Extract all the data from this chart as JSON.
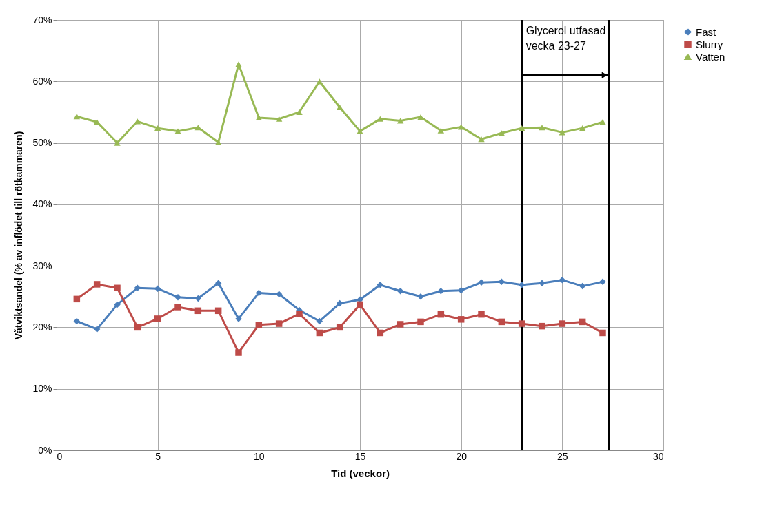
{
  "chart_data": {
    "type": "line",
    "xlabel": "Tid (veckor)",
    "ylabel": "Våtviktsandel (% av inflödet till rötkammaren)",
    "x": [
      1,
      2,
      3,
      4,
      5,
      6,
      7,
      8,
      9,
      10,
      11,
      12,
      13,
      14,
      15,
      16,
      17,
      18,
      19,
      20,
      21,
      22,
      23,
      24,
      25,
      26,
      27
    ],
    "series": [
      {
        "name": "Fast",
        "color": "#4a7ebb",
        "marker": "diamond",
        "values": [
          21,
          19.7,
          23.7,
          26.4,
          26.3,
          24.9,
          24.7,
          27.2,
          21.4,
          25.6,
          25.4,
          22.8,
          21,
          23.9,
          24.5,
          26.9,
          25.9,
          25,
          25.9,
          26,
          27.3,
          27.4,
          26.9,
          27.2,
          27.7,
          26.7,
          27.4
        ]
      },
      {
        "name": "Slurry",
        "color": "#be4b48",
        "marker": "square",
        "values": [
          24.6,
          27,
          26.4,
          20,
          21.4,
          23.3,
          22.7,
          22.7,
          15.9,
          20.4,
          20.6,
          22.2,
          19.1,
          20,
          23.7,
          19.1,
          20.5,
          20.9,
          22.1,
          21.3,
          22.1,
          20.9,
          20.6,
          20.2,
          20.6,
          20.9,
          19.1
        ]
      },
      {
        "name": "Vatten",
        "color": "#98b954",
        "marker": "triangle",
        "values": [
          54.3,
          53.4,
          50,
          53.5,
          52.4,
          51.9,
          52.5,
          50.1,
          62.8,
          54.1,
          53.9,
          55,
          60,
          55.8,
          51.9,
          53.9,
          53.6,
          54.2,
          52,
          52.6,
          50.6,
          51.6,
          52.4,
          52.5,
          51.7,
          52.4,
          53.4
        ]
      }
    ],
    "xlim": [
      0,
      30
    ],
    "xticks": [
      0,
      5,
      10,
      15,
      20,
      25,
      30
    ],
    "ylim": [
      0,
      70
    ],
    "yticks": [
      {
        "value": 0,
        "label": "0%"
      },
      {
        "value": 10,
        "label": "10%"
      },
      {
        "value": 20,
        "label": "20%"
      },
      {
        "value": 30,
        "label": "30%"
      },
      {
        "value": 40,
        "label": "40%"
      },
      {
        "value": 50,
        "label": "50%"
      },
      {
        "value": 60,
        "label": "60%"
      },
      {
        "value": 70,
        "label": "70%"
      }
    ],
    "ref_lines": [
      {
        "axis": "x",
        "value": 23,
        "color": "#000000"
      },
      {
        "axis": "x",
        "value": 27.3,
        "color": "#000000"
      }
    ],
    "annotations": [
      {
        "text": "Glycerol utfasad\nvecka 23-27",
        "x": 23,
        "y": 61
      }
    ],
    "grid": true,
    "legend": "right",
    "line_style": "solid"
  }
}
